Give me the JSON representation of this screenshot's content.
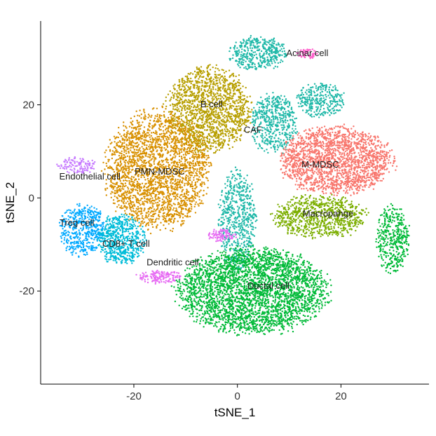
{
  "chart_data": {
    "type": "scatter",
    "title": "",
    "xlabel": "tSNE_1",
    "ylabel": "tSNE_2",
    "xlim": [
      -38,
      37
    ],
    "ylim": [
      -40,
      38
    ],
    "xticks": [
      -20,
      0,
      20
    ],
    "yticks": [
      20,
      0,
      -20
    ],
    "grid": false,
    "legend": "none",
    "clusters": [
      {
        "label": "Acinar cell",
        "color": "#FF61CC",
        "label_x": 13.5,
        "label_y": 30.5,
        "regions": [
          {
            "cx": 13.5,
            "cy": 31,
            "rx": 2.5,
            "ry": 1.2,
            "n": 60
          }
        ]
      },
      {
        "label": "B cell",
        "color": "#B79F00",
        "label_x": -5,
        "label_y": 19.5,
        "regions": [
          {
            "cx": -5.5,
            "cy": 19,
            "rx": 9,
            "ry": 10,
            "n": 1500
          }
        ]
      },
      {
        "label": "CAF",
        "color": "#1FB8A8",
        "label_x": 3,
        "label_y": 14,
        "regions": [
          {
            "cx": 4,
            "cy": 31,
            "rx": 6,
            "ry": 4,
            "n": 400
          },
          {
            "cx": 7,
            "cy": 16,
            "rx": 5,
            "ry": 7,
            "n": 500
          },
          {
            "cx": 16,
            "cy": 21,
            "rx": 5,
            "ry": 4,
            "n": 300
          },
          {
            "cx": 0,
            "cy": -5,
            "rx": 4,
            "ry": 12,
            "n": 600
          }
        ]
      },
      {
        "label": "M-MDSC",
        "color": "#F8766D",
        "label_x": 16,
        "label_y": 6.5,
        "regions": [
          {
            "cx": 19,
            "cy": 8,
            "rx": 12,
            "ry": 8,
            "n": 1900
          }
        ]
      },
      {
        "label": "Macropahge",
        "color": "#7CAE00",
        "label_x": 17.5,
        "label_y": -4,
        "regions": [
          {
            "cx": 16,
            "cy": -4,
            "rx": 10,
            "ry": 5,
            "n": 800
          }
        ]
      },
      {
        "label": "Endothelial cell",
        "color": "#C77CFF",
        "label_x": -28.5,
        "label_y": 4,
        "regions": [
          {
            "cx": -31,
            "cy": 7,
            "rx": 4,
            "ry": 2,
            "n": 120
          }
        ]
      },
      {
        "label": "PMN-MDSC",
        "color": "#D89000",
        "label_x": -15,
        "label_y": 5,
        "regions": [
          {
            "cx": -15.5,
            "cy": 6,
            "rx": 11,
            "ry": 14,
            "n": 2400
          }
        ]
      },
      {
        "label": "Treg cell",
        "color": "#00A9FF",
        "label_x": -31,
        "label_y": -6,
        "regions": [
          {
            "cx": -30,
            "cy": -7,
            "rx": 5,
            "ry": 6,
            "n": 500
          }
        ]
      },
      {
        "label": "CD8+ T cell",
        "color": "#00BCD8",
        "label_x": -21.5,
        "label_y": -10.5,
        "regions": [
          {
            "cx": -22.5,
            "cy": -9,
            "rx": 5,
            "ry": 6,
            "n": 600
          }
        ]
      },
      {
        "label": "Dendritic cell",
        "color": "#E76BF3",
        "label_x": -12.5,
        "label_y": -14.5,
        "regions": [
          {
            "cx": -15,
            "cy": -17,
            "rx": 5,
            "ry": 1.5,
            "n": 150
          },
          {
            "cx": -3,
            "cy": -8,
            "rx": 3,
            "ry": 1.5,
            "n": 100
          }
        ]
      },
      {
        "label": "Ductal cell",
        "color": "#00BA38",
        "label_x": 6,
        "label_y": -19.5,
        "regions": [
          {
            "cx": 3,
            "cy": -20,
            "rx": 16,
            "ry": 10,
            "n": 3200
          },
          {
            "cx": 30,
            "cy": -9,
            "rx": 3.5,
            "ry": 8,
            "n": 400
          }
        ]
      }
    ]
  }
}
